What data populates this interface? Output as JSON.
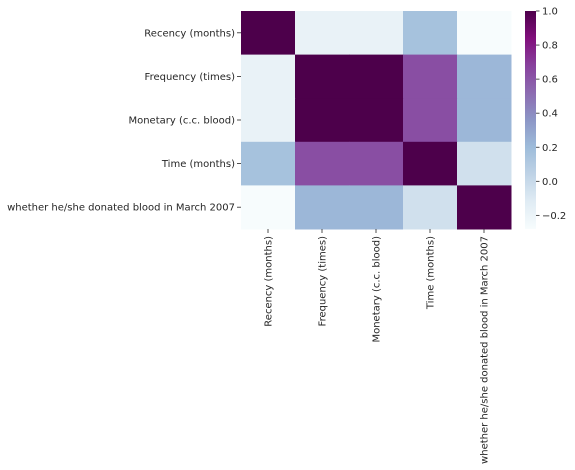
{
  "chart_data": {
    "type": "heatmap",
    "rows": [
      "Recency (months)",
      "Frequency (times)",
      "Monetary (c.c. blood)",
      "Time (months)",
      "whether he/she donated blood in March 2007"
    ],
    "columns": [
      "Recency (months)",
      "Frequency (times)",
      "Monetary (c.c. blood)",
      "Time (months)",
      "whether he/she donated blood in March 2007"
    ],
    "values": [
      [
        1.0,
        -0.18,
        -0.18,
        0.16,
        -0.28
      ],
      [
        -0.18,
        1.0,
        1.0,
        0.63,
        0.22
      ],
      [
        -0.18,
        1.0,
        1.0,
        0.63,
        0.22
      ],
      [
        0.16,
        0.63,
        0.63,
        1.0,
        -0.04
      ],
      [
        -0.28,
        0.22,
        0.22,
        -0.04,
        1.0
      ]
    ],
    "colorbar": {
      "min": -0.28,
      "max": 1.0,
      "ticks": [
        -0.2,
        0.0,
        0.2,
        0.4,
        0.6,
        0.8,
        1.0
      ],
      "tick_labels": [
        "−0.2",
        "0.0",
        "0.2",
        "0.4",
        "0.6",
        "0.8",
        "1.0"
      ]
    },
    "colormap": "BuPu",
    "colormap_stops": [
      "#f7fcfd",
      "#e0ecf4",
      "#bfd3e6",
      "#9ebcda",
      "#8c96c6",
      "#8c6bb1",
      "#88419d",
      "#810f7c",
      "#4d004b"
    ]
  }
}
